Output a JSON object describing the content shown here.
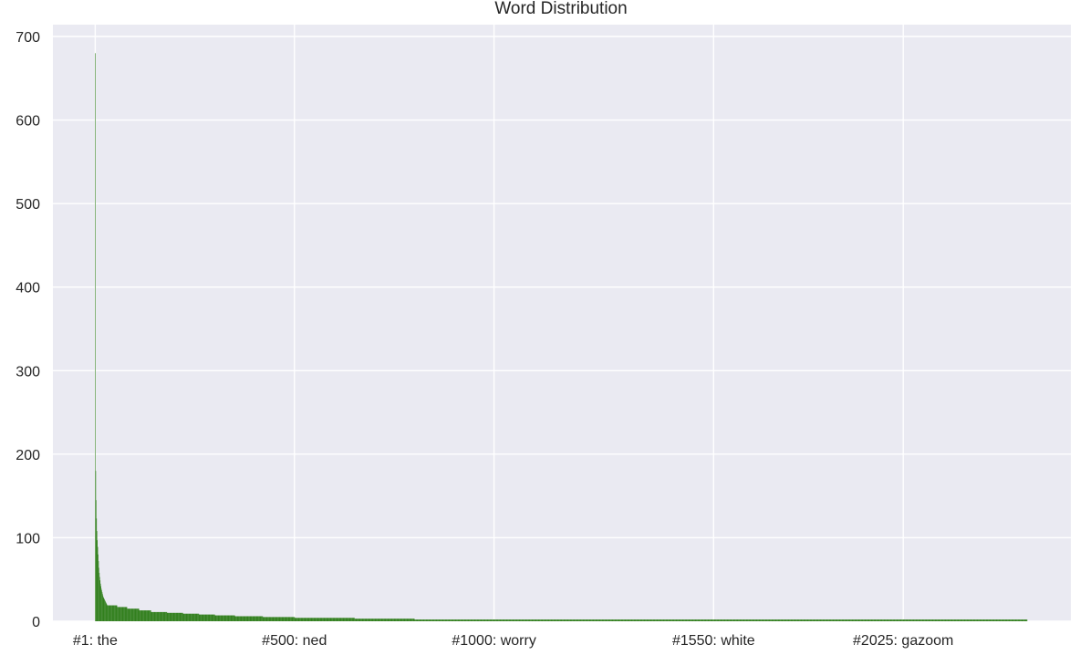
{
  "chart_data": {
    "type": "bar",
    "title": "Word Distribution",
    "xlabel": "",
    "ylabel": "",
    "ylim": [
      0,
      700
    ],
    "xlim": [
      -105,
      2445
    ],
    "y_ticks": [
      0,
      100,
      200,
      300,
      400,
      500,
      600,
      700
    ],
    "x_ticks": [
      {
        "position": 1,
        "label": "#1: the"
      },
      {
        "position": 500,
        "label": "#500: ned"
      },
      {
        "position": 1000,
        "label": "#1000: worry"
      },
      {
        "position": 1550,
        "label": "#1550: white"
      },
      {
        "position": 2025,
        "label": "#2025: gazoom"
      }
    ],
    "x_grid_positions": [
      1,
      500,
      1000,
      1550,
      2025
    ],
    "grid": true,
    "legend": "none",
    "num_words": 2335,
    "leading_counts": [
      680,
      180,
      145,
      123,
      108,
      97,
      89,
      80,
      72,
      64,
      58,
      53,
      49,
      45,
      42,
      39,
      37,
      35,
      33,
      31,
      29,
      28,
      27,
      26,
      25,
      24,
      23,
      22,
      21,
      20
    ],
    "count_runs": [
      {
        "from": 31,
        "to": 55,
        "value": 19
      },
      {
        "from": 56,
        "to": 80,
        "value": 17
      },
      {
        "from": 81,
        "to": 110,
        "value": 15
      },
      {
        "from": 111,
        "to": 140,
        "value": 13
      },
      {
        "from": 141,
        "to": 180,
        "value": 11
      },
      {
        "from": 181,
        "to": 220,
        "value": 10
      },
      {
        "from": 221,
        "to": 260,
        "value": 9
      },
      {
        "from": 261,
        "to": 300,
        "value": 8
      },
      {
        "from": 301,
        "to": 350,
        "value": 7
      },
      {
        "from": 351,
        "to": 420,
        "value": 6
      },
      {
        "from": 421,
        "to": 500,
        "value": 5
      },
      {
        "from": 501,
        "to": 650,
        "value": 4
      },
      {
        "from": 651,
        "to": 800,
        "value": 3
      },
      {
        "from": 801,
        "to": 2335,
        "value": 2
      }
    ],
    "colors": {
      "bar": "#33801f",
      "background": "#eaeaf2",
      "grid": "#ffffff",
      "text": "#262626"
    }
  }
}
